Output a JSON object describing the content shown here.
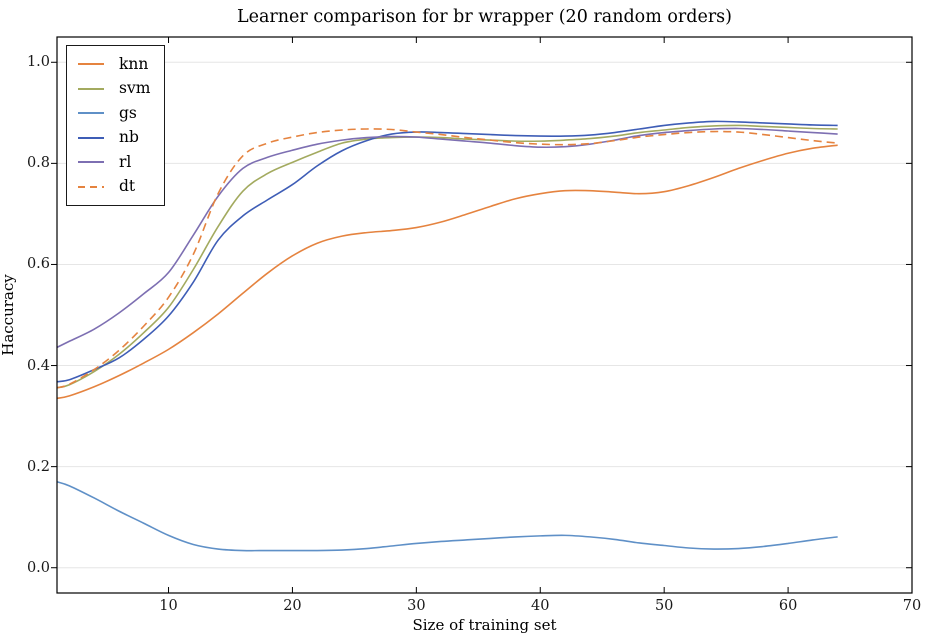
{
  "chart_data": {
    "type": "line",
    "title": "Learner comparison for br wrapper (20 random orders)",
    "xlabel": "Size of training set",
    "ylabel": "Haccuracy",
    "xlim": [
      1,
      70
    ],
    "ylim": [
      -0.05,
      1.05
    ],
    "xticks": [
      10,
      20,
      30,
      40,
      50,
      60,
      70
    ],
    "yticks": [
      0.0,
      0.2,
      0.4,
      0.6,
      0.8,
      1.0
    ],
    "grid": "horizontal gridlines only",
    "grid_color": "#e6e6e6",
    "background": "#ffffff",
    "legend_position": "upper-left",
    "x": [
      1,
      2,
      4,
      6,
      8,
      10,
      12,
      14,
      16,
      18,
      20,
      22,
      24,
      26,
      28,
      30,
      32,
      34,
      36,
      38,
      40,
      42,
      44,
      46,
      48,
      50,
      52,
      54,
      56,
      58,
      60,
      62,
      64
    ],
    "series": [
      {
        "name": "knn",
        "color": "#e5833f",
        "style": "solid",
        "values": [
          0.335,
          0.34,
          0.358,
          0.38,
          0.405,
          0.432,
          0.465,
          0.502,
          0.543,
          0.583,
          0.617,
          0.642,
          0.656,
          0.663,
          0.667,
          0.673,
          0.684,
          0.699,
          0.715,
          0.73,
          0.74,
          0.746,
          0.746,
          0.743,
          0.74,
          0.744,
          0.756,
          0.772,
          0.79,
          0.806,
          0.82,
          0.83,
          0.836
        ]
      },
      {
        "name": "svm",
        "color": "#a3aa5f",
        "style": "solid",
        "values": [
          0.356,
          0.362,
          0.388,
          0.422,
          0.465,
          0.515,
          0.59,
          0.675,
          0.745,
          0.78,
          0.802,
          0.822,
          0.84,
          0.848,
          0.851,
          0.852,
          0.851,
          0.848,
          0.846,
          0.844,
          0.844,
          0.846,
          0.849,
          0.854,
          0.861,
          0.866,
          0.871,
          0.874,
          0.875,
          0.873,
          0.871,
          0.869,
          0.868
        ]
      },
      {
        "name": "gs",
        "color": "#5f90c7",
        "style": "solid",
        "values": [
          0.17,
          0.162,
          0.138,
          0.112,
          0.088,
          0.064,
          0.046,
          0.037,
          0.034,
          0.034,
          0.034,
          0.034,
          0.035,
          0.038,
          0.043,
          0.048,
          0.052,
          0.055,
          0.058,
          0.061,
          0.063,
          0.064,
          0.061,
          0.056,
          0.049,
          0.044,
          0.039,
          0.037,
          0.038,
          0.042,
          0.048,
          0.055,
          0.061
        ]
      },
      {
        "name": "nb",
        "color": "#3e5db6",
        "style": "solid",
        "values": [
          0.368,
          0.372,
          0.392,
          0.415,
          0.452,
          0.498,
          0.565,
          0.648,
          0.696,
          0.728,
          0.758,
          0.795,
          0.825,
          0.845,
          0.858,
          0.862,
          0.861,
          0.859,
          0.857,
          0.855,
          0.854,
          0.854,
          0.856,
          0.861,
          0.868,
          0.875,
          0.88,
          0.883,
          0.882,
          0.88,
          0.878,
          0.876,
          0.875
        ]
      },
      {
        "name": "rl",
        "color": "#7d6fb2",
        "style": "solid",
        "values": [
          0.436,
          0.448,
          0.472,
          0.504,
          0.542,
          0.584,
          0.658,
          0.735,
          0.79,
          0.812,
          0.826,
          0.838,
          0.846,
          0.851,
          0.853,
          0.852,
          0.848,
          0.844,
          0.84,
          0.835,
          0.832,
          0.833,
          0.838,
          0.846,
          0.855,
          0.861,
          0.865,
          0.868,
          0.869,
          0.867,
          0.864,
          0.861,
          0.858
        ]
      },
      {
        "name": "dt",
        "color": "#e5833f",
        "style": "dashed",
        "values": [
          0.356,
          0.363,
          0.392,
          0.43,
          0.478,
          0.535,
          0.62,
          0.74,
          0.815,
          0.84,
          0.852,
          0.861,
          0.866,
          0.868,
          0.867,
          0.862,
          0.857,
          0.851,
          0.846,
          0.841,
          0.838,
          0.837,
          0.839,
          0.845,
          0.852,
          0.857,
          0.861,
          0.863,
          0.862,
          0.857,
          0.851,
          0.845,
          0.84
        ]
      }
    ]
  }
}
